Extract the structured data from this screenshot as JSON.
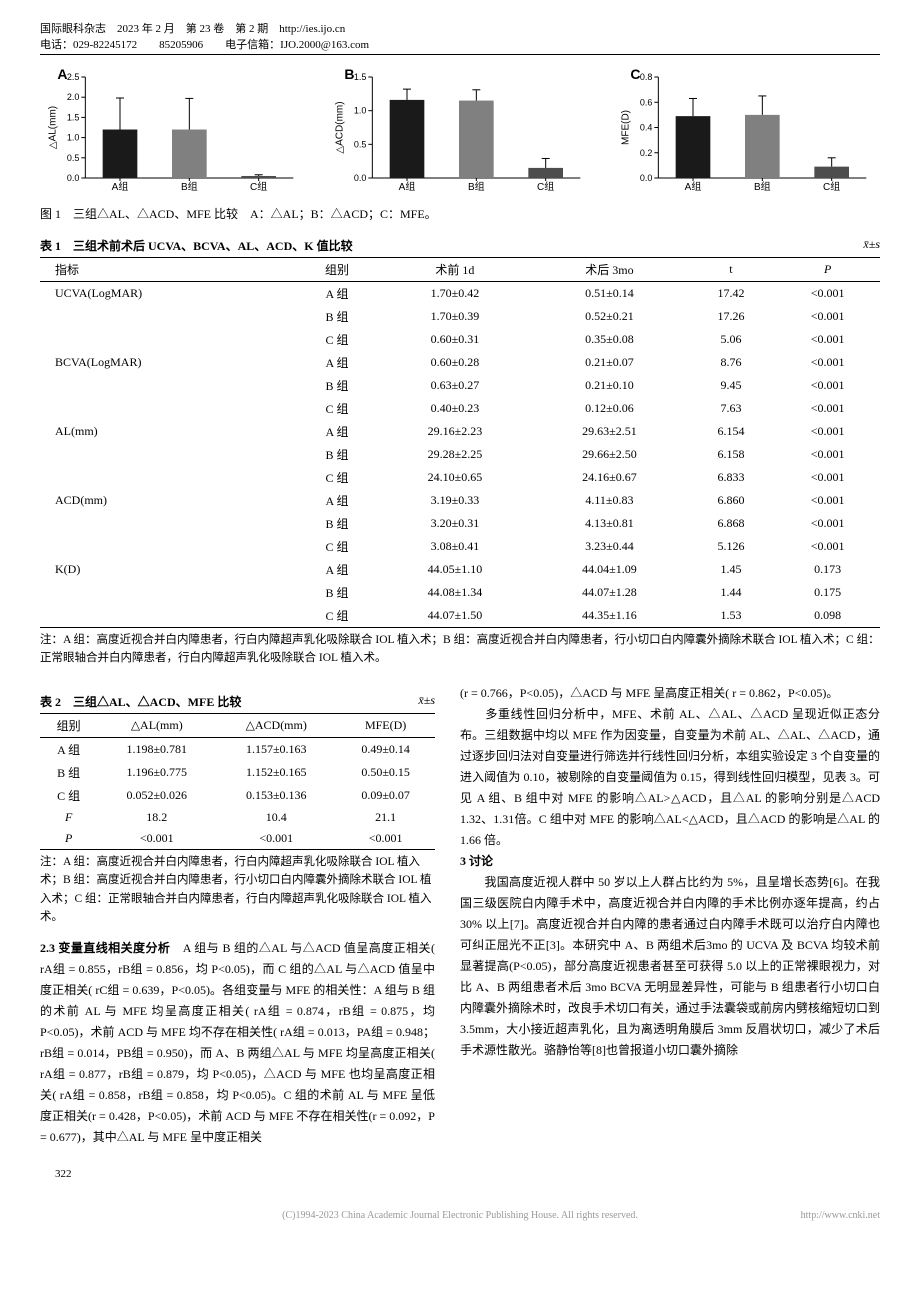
{
  "header": {
    "line1": "国际眼科杂志　2023 年 2 月　第 23 卷　第 2 期　http://ies.ijo.cn",
    "line2": "电话：029-82245172　　85205906　　电子信箱：IJO.2000@163.com"
  },
  "charts": {
    "A": {
      "label": "A",
      "ylabel": "△AL(mm)",
      "ymax": 2.5,
      "ytick": 0.5,
      "categories": [
        "A组",
        "B组",
        "C组"
      ],
      "values": [
        1.2,
        1.2,
        0.05
      ],
      "errors": [
        0.78,
        0.77,
        0.03
      ],
      "colors": [
        "#1a1a1a",
        "#808080",
        "#4d4d4d"
      ]
    },
    "B": {
      "label": "B",
      "ylabel": "△ACD(mm)",
      "ymax": 1.5,
      "ytick": 0.5,
      "categories": [
        "A组",
        "B组",
        "C组"
      ],
      "values": [
        1.16,
        1.15,
        0.15
      ],
      "errors": [
        0.16,
        0.16,
        0.14
      ],
      "colors": [
        "#1a1a1a",
        "#808080",
        "#4d4d4d"
      ]
    },
    "C": {
      "label": "C",
      "ylabel": "MFE(D)",
      "ymax": 0.8,
      "ytick": 0.2,
      "categories": [
        "A组",
        "B组",
        "C组"
      ],
      "values": [
        0.49,
        0.5,
        0.09
      ],
      "errors": [
        0.14,
        0.15,
        0.07
      ],
      "colors": [
        "#1a1a1a",
        "#808080",
        "#4d4d4d"
      ]
    }
  },
  "fig1_caption": "图 1　三组△AL、△ACD、MFE 比较　A：△AL；B：△ACD；C：MFE。",
  "table1": {
    "title": "表 1　三组术前术后 UCVA、BCVA、AL、ACD、K 值比较",
    "right": "x̄±s",
    "headers": [
      "指标",
      "组别",
      "术前 1d",
      "术后 3mo",
      "t",
      "P"
    ],
    "rows": [
      [
        "UCVA(LogMAR)",
        "A 组",
        "1.70±0.42",
        "0.51±0.14",
        "17.42",
        "<0.001"
      ],
      [
        "",
        "B 组",
        "1.70±0.39",
        "0.52±0.21",
        "17.26",
        "<0.001"
      ],
      [
        "",
        "C 组",
        "0.60±0.31",
        "0.35±0.08",
        "5.06",
        "<0.001"
      ],
      [
        "BCVA(LogMAR)",
        "A 组",
        "0.60±0.28",
        "0.21±0.07",
        "8.76",
        "<0.001"
      ],
      [
        "",
        "B 组",
        "0.63±0.27",
        "0.21±0.10",
        "9.45",
        "<0.001"
      ],
      [
        "",
        "C 组",
        "0.40±0.23",
        "0.12±0.06",
        "7.63",
        "<0.001"
      ],
      [
        "AL(mm)",
        "A 组",
        "29.16±2.23",
        "29.63±2.51",
        "6.154",
        "<0.001"
      ],
      [
        "",
        "B 组",
        "29.28±2.25",
        "29.66±2.50",
        "6.158",
        "<0.001"
      ],
      [
        "",
        "C 组",
        "24.10±0.65",
        "24.16±0.67",
        "6.833",
        "<0.001"
      ],
      [
        "ACD(mm)",
        "A 组",
        "3.19±0.33",
        "4.11±0.83",
        "6.860",
        "<0.001"
      ],
      [
        "",
        "B 组",
        "3.20±0.31",
        "4.13±0.81",
        "6.868",
        "<0.001"
      ],
      [
        "",
        "C 组",
        "3.08±0.41",
        "3.23±0.44",
        "5.126",
        "<0.001"
      ],
      [
        "K(D)",
        "A 组",
        "44.05±1.10",
        "44.04±1.09",
        "1.45",
        "0.173"
      ],
      [
        "",
        "B 组",
        "44.08±1.34",
        "44.07±1.28",
        "1.44",
        "0.175"
      ],
      [
        "",
        "C 组",
        "44.07±1.50",
        "44.35±1.16",
        "1.53",
        "0.098"
      ]
    ],
    "note": "注：A 组：高度近视合并白内障患者，行白内障超声乳化吸除联合 IOL 植入术；B 组：高度近视合并白内障患者，行小切口白内障囊外摘除术联合 IOL 植入术；C 组：正常眼轴合并白内障患者，行白内障超声乳化吸除联合 IOL 植入术。"
  },
  "table2": {
    "title": "表 2　三组△AL、△ACD、MFE 比较",
    "right": "x̄±s",
    "headers": [
      "组别",
      "△AL(mm)",
      "△ACD(mm)",
      "MFE(D)"
    ],
    "rows": [
      [
        "A 组",
        "1.198±0.781",
        "1.157±0.163",
        "0.49±0.14"
      ],
      [
        "B 组",
        "1.196±0.775",
        "1.152±0.165",
        "0.50±0.15"
      ],
      [
        "C 组",
        "0.052±0.026",
        "0.153±0.136",
        "0.09±0.07"
      ],
      [
        "F",
        "18.2",
        "10.4",
        "21.1"
      ],
      [
        "P",
        "<0.001",
        "<0.001",
        "<0.001"
      ]
    ],
    "note": "注：A 组：高度近视合并白内障患者，行白内障超声乳化吸除联合 IOL 植入术；B 组：高度近视合并白内障患者，行小切口白内障囊外摘除术联合 IOL 植入术；C 组：正常眼轴合并白内障患者，行白内障超声乳化吸除联合 IOL 植入术。"
  },
  "section23_head": "2.3 变量直线相关度分析",
  "section23_body": "　A 组与 B 组的△AL 与△ACD 值呈高度正相关( rA组 = 0.855，rB组 = 0.856，均 P<0.05)，而 C 组的△AL 与△ACD 值呈中度正相关( rC组 = 0.639，P<0.05)。各组变量与 MFE 的相关性：A 组与 B 组的术前 AL 与 MFE 均呈高度正相关( rA组 = 0.874，rB组 = 0.875，均P<0.05)，术前 ACD 与 MFE 均不存在相关性( rA组 = 0.013，PA组 = 0.948；rB组 = 0.014，PB组 = 0.950)，而 A、B 两组△AL 与 MFE 均呈高度正相关( rA组 = 0.877，rB组 = 0.879，均 P<0.05)，△ACD 与 MFE 也均呈高度正相关( rA组 = 0.858，rB组 = 0.858，均 P<0.05)。C 组的术前 AL 与 MFE 呈低度正相关(r = 0.428，P<0.05)，术前 ACD 与 MFE 不存在相关性(r = 0.092，P = 0.677)，其中△AL 与 MFE 呈中度正相关",
  "right_para1": "(r = 0.766，P<0.05)，△ACD 与 MFE 呈高度正相关( r = 0.862，P<0.05)。",
  "right_para2": "　　多重线性回归分析中，MFE、术前 AL、△AL、△ACD 呈现近似正态分布。三组数据中均以 MFE 作为因变量，自变量为术前 AL、△AL、△ACD，通过逐步回归法对自变量进行筛选并行线性回归分析，本组实验设定 3 个自变量的进入阈值为 0.10，被剔除的自变量阈值为 0.15，得到线性回归模型，见表 3。可见 A 组、B 组中对 MFE 的影响△AL>△ACD，且△AL 的影响分别是△ACD 1.32、1.31倍。C 组中对 MFE 的影响△AL<△ACD，且△ACD 的影响是△AL 的 1.66 倍。",
  "section3_head": "3 讨论",
  "section3_body": "　　我国高度近视人群中 50 岁以上人群占比约为 5%，且呈增长态势[6]。在我国三级医院白内障手术中，高度近视合并白内障的手术比例亦逐年提高，约占 30% 以上[7]。高度近视合并白内障的患者通过白内障手术既可以治疗白内障也可纠正屈光不正[3]。本研究中 A、B 两组术后3mo 的 UCVA 及 BCVA 均较术前显著提高(P<0.05)，部分高度近视患者甚至可获得 5.0 以上的正常裸眼视力，对比 A、B 两组患者术后 3mo BCVA 无明显差异性，可能与 B 组患者行小切口白内障囊外摘除术时，改良手术切口有关，通过手法囊袋或前房内劈核缩短切口到 3.5mm，大小接近超声乳化，且为离透明角膜后 3mm 反眉状切口，减少了术后手术源性散光。骆静怡等[8]也曾报道小切口囊外摘除",
  "page": "322",
  "footer_left": "(C)1994-2023 China Academic Journal Electronic Publishing House. All rights reserved.",
  "footer_right": "http://www.cnki.net"
}
